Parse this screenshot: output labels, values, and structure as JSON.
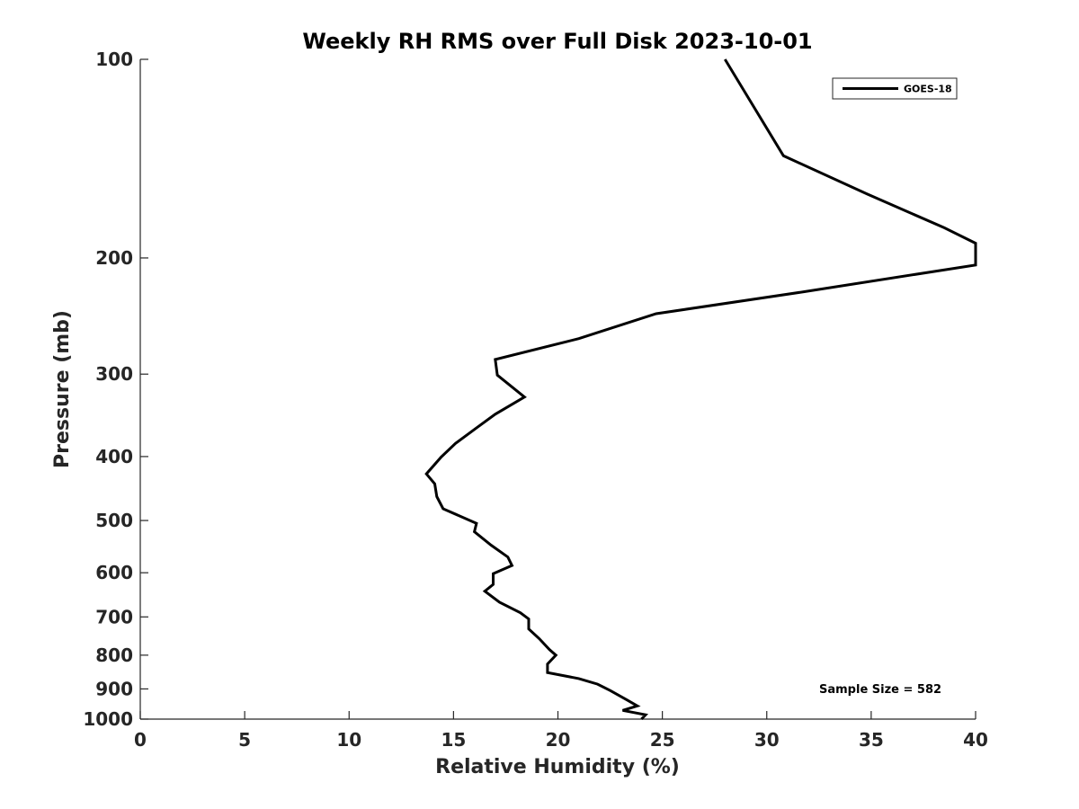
{
  "chart_data": {
    "type": "line",
    "title": "Weekly RH RMS over Full Disk 2023-10-01",
    "xlabel": "Relative Humidity (%)",
    "ylabel": "Pressure (mb)",
    "xlim": [
      0,
      40
    ],
    "ylim": [
      100,
      1000
    ],
    "y_scale": "log",
    "y_reversed": true,
    "grid": false,
    "legend_position": "top-right",
    "x_ticks": [
      0,
      5,
      10,
      15,
      20,
      25,
      30,
      35,
      40
    ],
    "x_tick_labels": [
      "0",
      "5",
      "10",
      "15",
      "20",
      "25",
      "30",
      "35",
      "40"
    ],
    "y_ticks": [
      100,
      200,
      300,
      400,
      500,
      600,
      700,
      800,
      900,
      1000
    ],
    "y_tick_labels": [
      "100",
      "200",
      "300",
      "400",
      "500",
      "600",
      "700",
      "800",
      "900",
      "1000"
    ],
    "series": [
      {
        "name": "GOES-18",
        "color": "#000000",
        "points": [
          [
            28.0,
            100
          ],
          [
            30.8,
            140
          ],
          [
            34.8,
            160
          ],
          [
            38.5,
            180
          ],
          [
            40.0,
            190
          ],
          [
            40.0,
            205
          ],
          [
            31.8,
            225
          ],
          [
            24.7,
            243
          ],
          [
            21.0,
            265
          ],
          [
            17.0,
            285
          ],
          [
            17.1,
            301
          ],
          [
            18.4,
            325
          ],
          [
            17.0,
            345
          ],
          [
            16.1,
            362
          ],
          [
            15.1,
            382
          ],
          [
            14.4,
            401
          ],
          [
            13.7,
            425
          ],
          [
            14.1,
            440
          ],
          [
            14.2,
            460
          ],
          [
            14.5,
            480
          ],
          [
            16.1,
            505
          ],
          [
            16.0,
            520
          ],
          [
            16.8,
            545
          ],
          [
            17.6,
            568
          ],
          [
            17.8,
            585
          ],
          [
            16.9,
            602
          ],
          [
            16.9,
            625
          ],
          [
            16.5,
            640
          ],
          [
            17.2,
            665
          ],
          [
            18.2,
            690
          ],
          [
            18.6,
            705
          ],
          [
            18.6,
            730
          ],
          [
            19.1,
            755
          ],
          [
            19.6,
            785
          ],
          [
            19.9,
            800
          ],
          [
            19.5,
            825
          ],
          [
            19.5,
            850
          ],
          [
            21.0,
            868
          ],
          [
            21.9,
            885
          ],
          [
            22.5,
            905
          ],
          [
            23.3,
            935
          ],
          [
            23.8,
            955
          ],
          [
            23.1,
            970
          ],
          [
            24.2,
            985
          ],
          [
            24.0,
            1000
          ]
        ]
      }
    ],
    "annotations": [
      "Sample Size = 582"
    ]
  }
}
